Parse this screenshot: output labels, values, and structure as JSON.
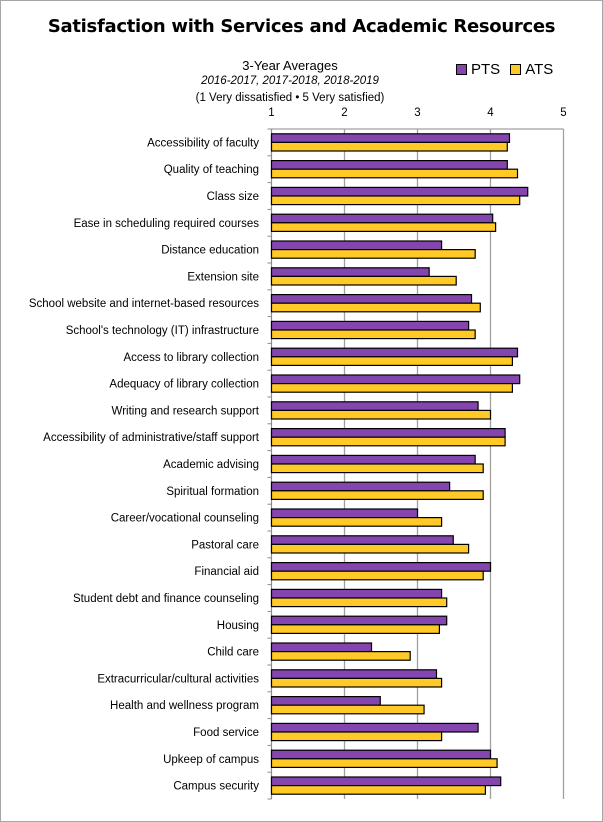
{
  "chart_data": {
    "type": "bar",
    "orientation": "horizontal",
    "title": "Satisfaction  with Services and  Academic Resources",
    "subtitle_lines": [
      "3-Year Averages",
      "2016-2017, 2017-2018, 2018-2019",
      "(1 Very dissatisfied • 5 Very satisfied)"
    ],
    "xlim": [
      1,
      5
    ],
    "x_ticks": [
      "1",
      "2",
      "3",
      "4",
      "5"
    ],
    "grid": true,
    "legend_position": "top-right",
    "categories": [
      "Accessibility of faculty",
      "Quality of teaching",
      "Class size",
      "Ease in scheduling required courses",
      "Distance education",
      "Extension site",
      "School website and internet-based resources",
      "School's technology (IT) infrastructure",
      "Access to library collection",
      "Adequacy of library collection",
      "Writing and research support",
      "Accessibility of administrative/staff support",
      "Academic advising",
      "Spiritual formation",
      "Career/vocational counseling",
      "Pastoral care",
      "Financial aid",
      "Student debt and finance counseling",
      "Housing",
      "Child care",
      "Extracurricular/cultural activities",
      "Health and wellness program",
      "Food service",
      "Upkeep of campus",
      "Campus security"
    ],
    "series": [
      {
        "name": "PTS",
        "color": "#8445AE",
        "values": [
          4.26,
          4.23,
          4.51,
          4.03,
          3.33,
          3.16,
          3.74,
          3.7,
          4.37,
          4.4,
          3.83,
          4.2,
          3.79,
          3.44,
          3.0,
          3.49,
          4.0,
          3.33,
          3.4,
          2.37,
          3.26,
          2.49,
          3.83,
          4.0,
          4.14
        ]
      },
      {
        "name": "ATS",
        "color": "#FFC926",
        "values": [
          4.23,
          4.37,
          4.4,
          4.07,
          3.79,
          3.53,
          3.86,
          3.79,
          4.3,
          4.3,
          4.0,
          4.2,
          3.9,
          3.9,
          3.33,
          3.7,
          3.9,
          3.4,
          3.3,
          2.9,
          3.33,
          3.09,
          3.33,
          4.09,
          3.93
        ]
      }
    ]
  }
}
